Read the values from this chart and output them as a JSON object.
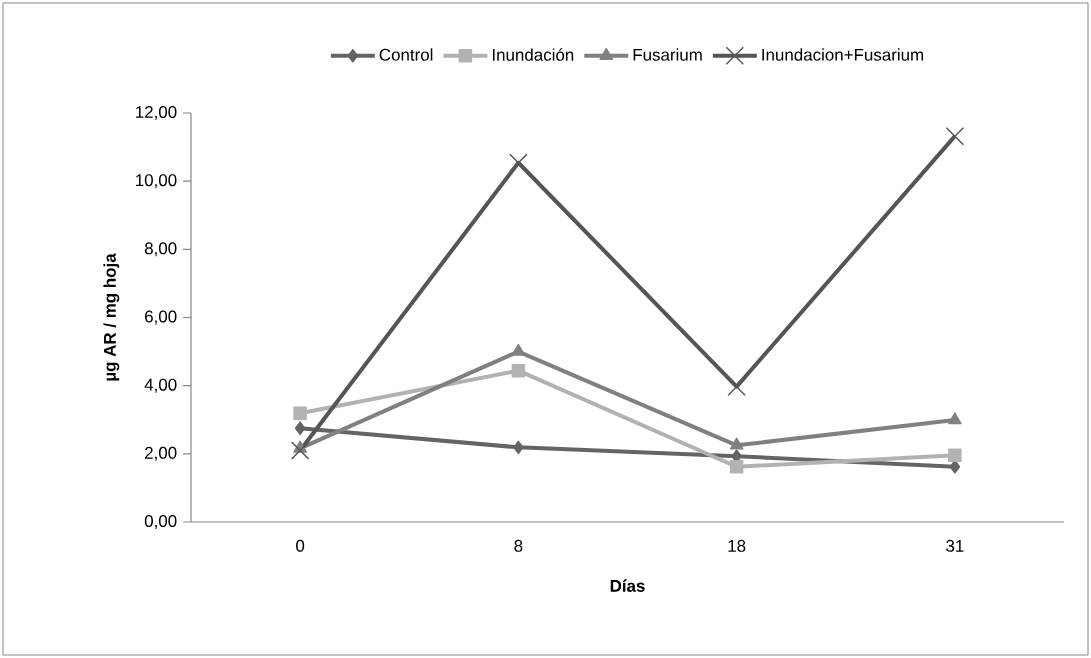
{
  "chart_data": {
    "type": "line",
    "xlabel": "Días",
    "ylabel": "µg AR / mg hoja",
    "categories": [
      "0",
      "8",
      "18",
      "31"
    ],
    "series": [
      {
        "name": "Control",
        "color": "#646464",
        "marker": "diamond",
        "values": [
          2.75,
          2.19,
          1.93,
          1.62
        ]
      },
      {
        "name": "Inundación",
        "color": "#b2b2b2",
        "marker": "square",
        "values": [
          3.19,
          4.44,
          1.62,
          1.96
        ]
      },
      {
        "name": "Fusarium",
        "color": "#808080",
        "marker": "triangle",
        "values": [
          2.16,
          5.0,
          2.25,
          2.99
        ]
      },
      {
        "name": "Inundacion+Fusarium",
        "color": "#555555",
        "marker": "cross",
        "values": [
          2.1,
          10.54,
          3.97,
          11.32
        ]
      }
    ],
    "ylim": [
      0,
      12
    ],
    "yticks": [
      {
        "value": 0,
        "label": "0,00"
      },
      {
        "value": 2,
        "label": "2,00"
      },
      {
        "value": 4,
        "label": "4,00"
      },
      {
        "value": 6,
        "label": "6,00"
      },
      {
        "value": 8,
        "label": "8,00"
      },
      {
        "value": 10,
        "label": "10,00"
      },
      {
        "value": 12,
        "label": "12,00"
      }
    ],
    "grid": false,
    "legend": "top",
    "line_style": "solid"
  }
}
